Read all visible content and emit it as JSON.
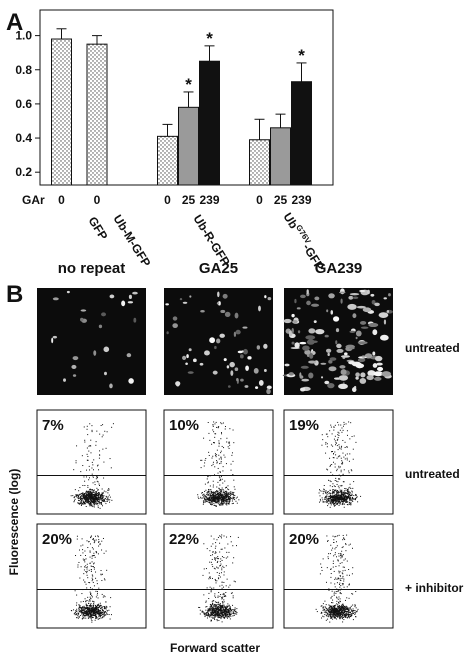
{
  "panel_labels": [
    "A",
    "B"
  ],
  "chart_data": {
    "type": "bar",
    "row_label": "GAr",
    "categories": [
      "0",
      "0",
      "0",
      "25",
      "239",
      "0",
      "25",
      "239"
    ],
    "values": [
      0.98,
      0.95,
      0.41,
      0.58,
      0.85,
      0.39,
      0.46,
      0.73
    ],
    "errors": [
      0.06,
      0.05,
      0.07,
      0.09,
      0.09,
      0.12,
      0.08,
      0.11
    ],
    "significance": [
      null,
      null,
      null,
      "*",
      "*",
      null,
      null,
      "*"
    ],
    "colors": [
      "#ffffff",
      "#ffffff",
      "#ffffff",
      "#9a9a9a",
      "#111111",
      "#ffffff",
      "#9a9a9a",
      "#111111"
    ],
    "dotted": [
      true,
      true,
      true,
      false,
      false,
      true,
      false,
      false
    ],
    "groups": [
      {
        "name": "GFP"
      },
      {
        "name": "Ub-M-GFP"
      },
      {
        "name": "Ub-R-GFP"
      },
      {
        "name": "Ub",
        "superscript": "G76V",
        "suffix": "-GFP"
      }
    ],
    "ylim": [
      0.125,
      1.15
    ],
    "yticks": [
      0.2,
      0.4,
      0.6,
      0.8,
      {
        "value": 1,
        "label": "1.0"
      }
    ]
  },
  "panel_b": {
    "columns": [
      "no repeat",
      "GA25",
      "GA239"
    ],
    "image_row_label": "untreated",
    "flow_rows": [
      {
        "label": "untreated",
        "percents": [
          "7%",
          "10%",
          "19%"
        ]
      },
      {
        "label": "+ inhibitor",
        "percents": [
          "20%",
          "22%",
          "20%"
        ]
      }
    ],
    "y_axis_label": "Fluorescence (log)",
    "x_axis_label": "Forward scatter"
  }
}
